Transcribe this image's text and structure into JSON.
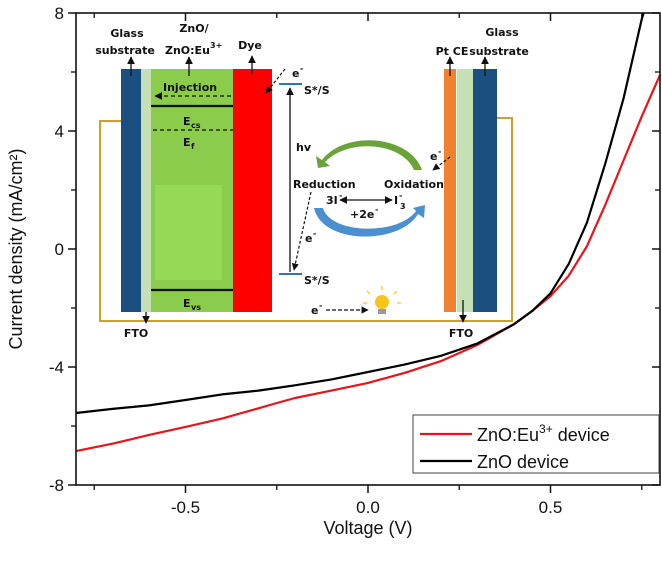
{
  "chart_data": {
    "type": "line",
    "xlabel": "Voltage (V)",
    "ylabel": "Current density (mA/cm²)",
    "xlim": [
      -0.8,
      0.8
    ],
    "ylim": [
      -8,
      8
    ],
    "xticks": [
      -0.5,
      0.0,
      0.5
    ],
    "xtick_labels": [
      "-0.5",
      "0.0",
      "0.5"
    ],
    "xminor": [
      -0.75,
      -0.25,
      0.25,
      0.75
    ],
    "yticks": [
      -8,
      -4,
      0,
      4,
      8
    ],
    "ytick_labels": [
      "-8",
      "-4",
      "0",
      "4",
      "8"
    ],
    "yminor": [
      -6,
      -2,
      2,
      6
    ],
    "grid": false,
    "legend_position": "bottom-right",
    "series": [
      {
        "name": "ZnO:Eu",
        "name_sup": "3+",
        "name_tail": " device",
        "color": "#e8141b",
        "points": [
          [
            -0.8,
            -6.85
          ],
          [
            -0.7,
            -6.6
          ],
          [
            -0.6,
            -6.3
          ],
          [
            -0.5,
            -6.03
          ],
          [
            -0.4,
            -5.75
          ],
          [
            -0.3,
            -5.4
          ],
          [
            -0.25,
            -5.22
          ],
          [
            -0.2,
            -5.05
          ],
          [
            -0.1,
            -4.8
          ],
          [
            0,
            -4.54
          ],
          [
            0.1,
            -4.2
          ],
          [
            0.2,
            -3.8
          ],
          [
            0.3,
            -3.25
          ],
          [
            0.4,
            -2.55
          ],
          [
            0.45,
            -2.1
          ],
          [
            0.5,
            -1.6
          ],
          [
            0.55,
            -0.9
          ],
          [
            0.6,
            0.1
          ],
          [
            0.65,
            1.5
          ],
          [
            0.7,
            3.0
          ],
          [
            0.75,
            4.5
          ],
          [
            0.8,
            5.9
          ]
        ]
      },
      {
        "name": "ZnO device",
        "color": "#000000",
        "points": [
          [
            -0.8,
            -5.56
          ],
          [
            -0.7,
            -5.42
          ],
          [
            -0.6,
            -5.3
          ],
          [
            -0.5,
            -5.12
          ],
          [
            -0.4,
            -4.93
          ],
          [
            -0.3,
            -4.8
          ],
          [
            -0.2,
            -4.62
          ],
          [
            -0.1,
            -4.42
          ],
          [
            0,
            -4.17
          ],
          [
            0.1,
            -3.92
          ],
          [
            0.2,
            -3.62
          ],
          [
            0.3,
            -3.2
          ],
          [
            0.4,
            -2.55
          ],
          [
            0.45,
            -2.1
          ],
          [
            0.5,
            -1.5
          ],
          [
            0.55,
            -0.5
          ],
          [
            0.6,
            0.9
          ],
          [
            0.65,
            2.9
          ],
          [
            0.7,
            5.1
          ],
          [
            0.75,
            7.8
          ],
          [
            0.755,
            8
          ]
        ]
      }
    ]
  },
  "inset": {
    "glass_left": [
      "Glass",
      "substrate"
    ],
    "zno": [
      "ZnO/",
      "ZnO:Eu",
      "3+"
    ],
    "dye": "Dye",
    "pt_ce": "Pt CE",
    "glass_right": [
      "Glass",
      "substrate"
    ],
    "injection": "Injection",
    "ecs": [
      "E",
      "cs"
    ],
    "ef": [
      "E",
      "f"
    ],
    "evs": [
      "E",
      "vs"
    ],
    "ss_top": "S*/S",
    "ss_bottom": "S*/S",
    "hv": "hv",
    "electron": [
      "e",
      "-"
    ],
    "reduction": "Reduction",
    "oxidation": "Oxidation",
    "iodide": "3I",
    "iodide_sup": "-",
    "triiodide": [
      "I",
      "-",
      "3"
    ],
    "two_e": "+2e",
    "two_e_sup": "-",
    "fto_left": "FTO",
    "fto_right": "FTO",
    "colors": {
      "glass": "#1b4f80",
      "fto": "#c5e0b4",
      "zno": "#8ccc4c",
      "dye": "#ff0000",
      "pt": "#f0822f",
      "wire": "#c9a227"
    }
  }
}
